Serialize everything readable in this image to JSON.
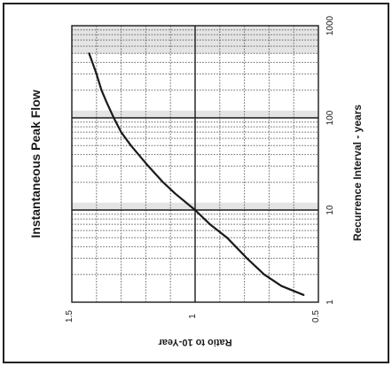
{
  "chart_data": {
    "type": "line",
    "title": "Instantaneous Peak Flow",
    "xlabel": "Recurrence Interval - years",
    "ylabel": "Ratio to 10-Year",
    "x_scale": "log",
    "x_range": [
      1,
      1000
    ],
    "y_range": [
      0.5,
      1.5
    ],
    "x_ticks": [
      {
        "value": 1,
        "label": "1"
      },
      {
        "value": 10,
        "label": "10"
      },
      {
        "value": 100,
        "label": "100"
      },
      {
        "value": 1000,
        "label": "1000"
      }
    ],
    "y_ticks": [
      {
        "value": 1.5,
        "label": "1.5"
      },
      {
        "value": 1,
        "label": "1"
      },
      {
        "value": 0.5,
        "label": "0.5"
      }
    ],
    "grid": true,
    "rotated": "90deg-clockwise",
    "series": [
      {
        "x": [
          1.2,
          1.5,
          2,
          3,
          5,
          7,
          10,
          15,
          20,
          30,
          50,
          70,
          100,
          150,
          200,
          300,
          500
        ],
        "y": [
          0.56,
          0.65,
          0.72,
          0.79,
          0.87,
          0.94,
          1.0,
          1.08,
          1.13,
          1.19,
          1.26,
          1.3,
          1.33,
          1.36,
          1.38,
          1.4,
          1.43
        ]
      }
    ]
  },
  "colors": {
    "line": "#1a1a1a",
    "minor_grid": "#6a6a6a",
    "major_grid": "#1a1a1a",
    "band_shade": "#e4e4e4"
  }
}
